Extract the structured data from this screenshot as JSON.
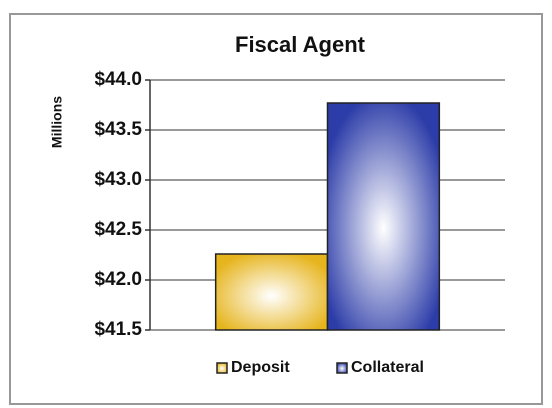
{
  "chart_data": {
    "type": "bar",
    "title": "Fiscal Agent",
    "y_label": "Millions",
    "categories": [
      null
    ],
    "series": [
      {
        "name": "Deposit",
        "color": "#e6b41c",
        "values": [
          42.26
        ]
      },
      {
        "name": "Collateral",
        "color": "#2c3ca8",
        "values": [
          43.77
        ]
      }
    ],
    "ylim": [
      41.5,
      44.0
    ],
    "yticks": [
      {
        "value": 41.5,
        "label": "$41.5"
      },
      {
        "value": 42.0,
        "label": "$42.0"
      },
      {
        "value": 42.5,
        "label": "$42.5"
      },
      {
        "value": 43.0,
        "label": "$43.0"
      },
      {
        "value": 43.5,
        "label": "$43.5"
      },
      {
        "value": 44.0,
        "label": "$44.0"
      }
    ],
    "grid": true,
    "legend": "bottom"
  }
}
